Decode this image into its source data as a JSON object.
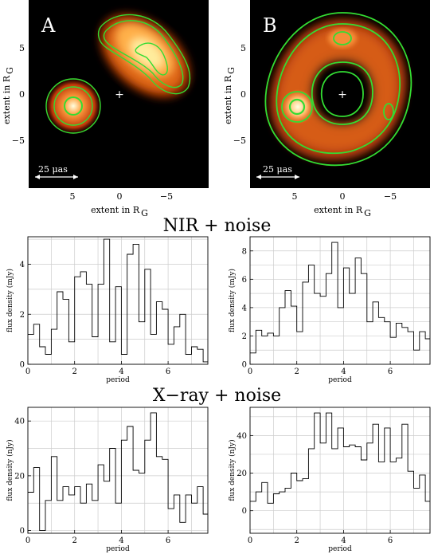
{
  "images": [
    {
      "panel_label": "A",
      "ylabel": "extent in R",
      "ylabel_sub": "G",
      "xlabel": "extent in R",
      "xlabel_sub": "G",
      "yticks": [
        "5",
        "0",
        "−5"
      ],
      "xticks": [
        "5",
        "0",
        "−5"
      ],
      "center_marker": "+",
      "scalebar_label": "25 μas"
    },
    {
      "panel_label": "B",
      "ylabel": "extent in R",
      "ylabel_sub": "G",
      "xlabel": "extent in R",
      "xlabel_sub": "G",
      "yticks": [
        "5",
        "0",
        "−5"
      ],
      "xticks": [
        "5",
        "0",
        "−5"
      ],
      "center_marker": "+",
      "scalebar_label": "25 μas"
    }
  ],
  "sections": {
    "nir_title": "NIR + noise",
    "xray_title": "X−ray + noise"
  },
  "colors": {
    "image_bg": "#000000",
    "contour": "#33dd33",
    "hot_low": "#7a1a00",
    "hot_mid": "#e05a10",
    "hot_high": "#ffffc0",
    "grid": "#cccccc",
    "trace": "#000000"
  },
  "chart_data": [
    {
      "type": "line",
      "step": true,
      "xlabel": "period",
      "ylabel": "flux density (mJy)",
      "xlim": [
        0,
        7.7
      ],
      "ylim": [
        0,
        5.1
      ],
      "xticks": [
        0,
        2,
        4,
        6
      ],
      "yticks": [
        0,
        2,
        4
      ],
      "x": [
        0,
        0.25,
        0.5,
        0.75,
        1,
        1.25,
        1.5,
        1.75,
        2,
        2.25,
        2.5,
        2.75,
        3,
        3.25,
        3.5,
        3.75,
        4,
        4.25,
        4.5,
        4.75,
        5,
        5.25,
        5.5,
        5.75,
        6,
        6.25,
        6.5,
        6.75,
        7,
        7.25,
        7.5
      ],
      "y": [
        1.2,
        1.6,
        0.7,
        0.4,
        1.4,
        2.9,
        2.6,
        0.9,
        3.5,
        3.7,
        3.2,
        1.1,
        3.2,
        5.0,
        0.9,
        3.1,
        0.4,
        4.4,
        4.8,
        1.7,
        3.8,
        1.2,
        2.5,
        2.2,
        0.8,
        1.5,
        2.0,
        0.4,
        0.7,
        0.6,
        0.1
      ]
    },
    {
      "type": "line",
      "step": true,
      "xlabel": "period",
      "ylabel": "flux density (mJy)",
      "xlim": [
        0,
        7.7
      ],
      "ylim": [
        0,
        9.0
      ],
      "xticks": [
        0,
        2,
        4,
        6
      ],
      "yticks": [
        0,
        2,
        4,
        6,
        8
      ],
      "x": [
        0,
        0.25,
        0.5,
        0.75,
        1,
        1.25,
        1.5,
        1.75,
        2,
        2.25,
        2.5,
        2.75,
        3,
        3.25,
        3.5,
        3.75,
        4,
        4.25,
        4.5,
        4.75,
        5,
        5.25,
        5.5,
        5.75,
        6,
        6.25,
        6.5,
        6.75,
        7,
        7.25,
        7.5
      ],
      "y": [
        0.8,
        2.4,
        2.0,
        2.2,
        2.0,
        4.0,
        5.2,
        4.1,
        2.3,
        5.8,
        7.0,
        5.0,
        4.8,
        6.4,
        8.6,
        4.0,
        6.8,
        5.0,
        7.5,
        6.4,
        3.0,
        4.4,
        3.3,
        3.0,
        1.9,
        2.9,
        2.6,
        2.3,
        1.0,
        2.3,
        1.8
      ]
    },
    {
      "type": "line",
      "step": true,
      "xlabel": "period",
      "ylabel": "flux density (nJy)",
      "xlim": [
        0,
        7.7
      ],
      "ylim": [
        -1,
        45
      ],
      "xticks": [
        0,
        2,
        4,
        6
      ],
      "yticks": [
        0,
        20,
        40
      ],
      "x": [
        0,
        0.25,
        0.5,
        0.75,
        1,
        1.25,
        1.5,
        1.75,
        2,
        2.25,
        2.5,
        2.75,
        3,
        3.25,
        3.5,
        3.75,
        4,
        4.25,
        4.5,
        4.75,
        5,
        5.25,
        5.5,
        5.75,
        6,
        6.25,
        6.5,
        6.75,
        7,
        7.25,
        7.5
      ],
      "y": [
        14,
        23,
        0,
        11,
        27,
        11,
        16,
        13,
        16,
        10,
        17,
        11,
        24,
        18,
        30,
        10,
        33,
        38,
        22,
        21,
        33,
        43,
        27,
        26,
        8,
        13,
        3,
        13,
        10,
        16,
        6
      ]
    },
    {
      "type": "line",
      "step": true,
      "xlabel": "period",
      "ylabel": "flux density (nJy)",
      "xlim": [
        0,
        7.7
      ],
      "ylim": [
        -12,
        55
      ],
      "xticks": [
        0,
        2,
        4,
        6
      ],
      "yticks": [
        0,
        20,
        40
      ],
      "x": [
        0,
        0.25,
        0.5,
        0.75,
        1,
        1.25,
        1.5,
        1.75,
        2,
        2.25,
        2.5,
        2.75,
        3,
        3.25,
        3.5,
        3.75,
        4,
        4.25,
        4.5,
        4.75,
        5,
        5.25,
        5.5,
        5.75,
        6,
        6.25,
        6.5,
        6.75,
        7,
        7.25,
        7.5
      ],
      "y": [
        5,
        10,
        15,
        4,
        9,
        10,
        12,
        20,
        16,
        17,
        33,
        52,
        36,
        52,
        33,
        44,
        34,
        35,
        34,
        27,
        36,
        46,
        26,
        44,
        26,
        28,
        46,
        21,
        12,
        19,
        5
      ]
    }
  ]
}
